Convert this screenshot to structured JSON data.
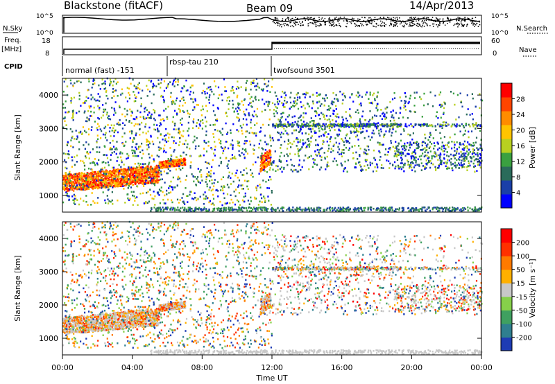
{
  "header": {
    "title": "Blackstone (fitACF)",
    "beam": "Beam 09",
    "date": "14/Apr/2013"
  },
  "nsky_panel": {
    "left_label": "N.Sky",
    "left_ticks": [
      "10^5",
      "10^0"
    ],
    "right_label": "N.Search",
    "right_ticks": [
      "10^5",
      "10^0"
    ]
  },
  "freq_panel": {
    "left_label_line1": "Freq.",
    "left_label_line2": "[MHz]",
    "left_ticks": [
      "18",
      "8"
    ],
    "right_label": "Nave",
    "right_ticks": [
      "60",
      "0"
    ]
  },
  "cpid": {
    "label": "CPID",
    "modes": [
      {
        "name": "normal (fast) -151",
        "start_hour": 0
      },
      {
        "name": "rbsp-tau 210",
        "start_hour": 6
      },
      {
        "name": "twofsound 3501",
        "start_hour": 12
      }
    ]
  },
  "chart_data": [
    {
      "type": "heatmap",
      "name": "power",
      "ylabel": "Slant Range [km]",
      "ylim": [
        500,
        4500
      ],
      "y_ticks": [
        1000,
        2000,
        3000,
        4000
      ],
      "xlim": [
        0,
        24
      ],
      "colorbar": {
        "label": "Power [dB]",
        "range": [
          0,
          32
        ],
        "ticks": [
          "28",
          "24",
          "20",
          "16",
          "12",
          "8",
          "4"
        ],
        "colors": [
          "#0000ff",
          "#1a3fa8",
          "#2a6b5a",
          "#3aa040",
          "#b8d020",
          "#ffc400",
          "#ff8c00",
          "#ff4500",
          "#ff0000"
        ]
      },
      "features": [
        {
          "desc": "strong echo band",
          "t_start": 0.0,
          "t_end": 5.5,
          "range_start": 1100,
          "range_end": 1900,
          "level_db": 28
        },
        {
          "desc": "echo band",
          "t_start": 5.5,
          "t_end": 7.0,
          "range_start": 1800,
          "range_end": 2100,
          "level_db": 22
        },
        {
          "desc": "echo patch",
          "t_start": 11.3,
          "t_end": 11.9,
          "range_start": 1700,
          "range_end": 2400,
          "level_db": 24
        }
      ]
    },
    {
      "type": "heatmap",
      "name": "velocity",
      "ylabel": "Slant Range [km]",
      "ylim": [
        500,
        4500
      ],
      "y_ticks": [
        1000,
        2000,
        3000,
        4000
      ],
      "xlim": [
        0,
        24
      ],
      "colorbar": {
        "label": "Velocity [m s⁻¹]",
        "range": [
          -250,
          250
        ],
        "ticks": [
          "200",
          "100",
          "50",
          "15",
          "-15",
          "-50",
          "-100",
          "-200"
        ],
        "colors": [
          "#1e3cb4",
          "#2f7f8f",
          "#3fa060",
          "#86d04a",
          "#c8c8c8",
          "#ffb000",
          "#ff7a00",
          "#ff3000",
          "#ff0000"
        ]
      }
    }
  ],
  "time_axis": {
    "label": "Time UT",
    "ticks": [
      "00:00",
      "04:00",
      "08:00",
      "12:00",
      "16:00",
      "20:00",
      "00:00"
    ]
  }
}
